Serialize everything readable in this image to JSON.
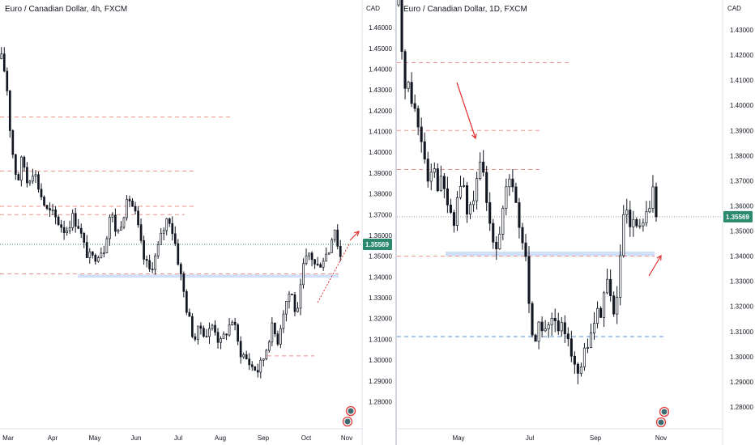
{
  "left": {
    "title": "Euro / Canadian Dollar, 4h, FXCM",
    "currency": "CAD",
    "price_label": "1.35569",
    "chart_data": {
      "type": "candlestick",
      "title": "Euro / Canadian Dollar, 4h, FXCM",
      "y_ticks": [
        "1.28000",
        "1.29000",
        "1.30000",
        "1.31000",
        "1.32000",
        "1.33000",
        "1.34000",
        "1.35000",
        "1.36000",
        "1.37000",
        "1.38000",
        "1.39000",
        "1.40000",
        "1.41000",
        "1.42000",
        "1.43000",
        "1.44000",
        "1.45000",
        "1.46000"
      ],
      "ylim": [
        1.2755,
        1.4655
      ],
      "x_ticks": [
        "Mar",
        "Apr",
        "May",
        "Jun",
        "Jul",
        "Aug",
        "Sep",
        "Oct",
        "Nov"
      ],
      "current_price": 1.35569,
      "price_path": [
        [
          0,
          1.445
        ],
        [
          6,
          1.436
        ],
        [
          12,
          1.405
        ],
        [
          20,
          1.385
        ],
        [
          26,
          1.398
        ],
        [
          32,
          1.386
        ],
        [
          40,
          1.392
        ],
        [
          48,
          1.381
        ],
        [
          56,
          1.372
        ],
        [
          64,
          1.37
        ],
        [
          72,
          1.366
        ],
        [
          80,
          1.362
        ],
        [
          88,
          1.369
        ],
        [
          96,
          1.365
        ],
        [
          104,
          1.353
        ],
        [
          112,
          1.348
        ],
        [
          120,
          1.352
        ],
        [
          128,
          1.354
        ],
        [
          136,
          1.372
        ],
        [
          144,
          1.36
        ],
        [
          152,
          1.371
        ],
        [
          160,
          1.378
        ],
        [
          168,
          1.368
        ],
        [
          176,
          1.35
        ],
        [
          184,
          1.343
        ],
        [
          192,
          1.35
        ],
        [
          200,
          1.361
        ],
        [
          208,
          1.37
        ],
        [
          216,
          1.357
        ],
        [
          224,
          1.339
        ],
        [
          232,
          1.322
        ],
        [
          240,
          1.31
        ],
        [
          248,
          1.316
        ],
        [
          256,
          1.312
        ],
        [
          264,
          1.318
        ],
        [
          272,
          1.307
        ],
        [
          280,
          1.314
        ],
        [
          288,
          1.32
        ],
        [
          296,
          1.305
        ],
        [
          304,
          1.301
        ],
        [
          312,
          1.297
        ],
        [
          320,
          1.295
        ],
        [
          328,
          1.303
        ],
        [
          336,
          1.316
        ],
        [
          344,
          1.31
        ],
        [
          352,
          1.326
        ],
        [
          360,
          1.334
        ],
        [
          368,
          1.32
        ],
        [
          376,
          1.345
        ],
        [
          384,
          1.352
        ],
        [
          392,
          1.344
        ],
        [
          400,
          1.349
        ],
        [
          408,
          1.353
        ],
        [
          414,
          1.366
        ],
        [
          418,
          1.357
        ],
        [
          422,
          1.35
        ]
      ],
      "resistance_lines": [
        1.417,
        1.391,
        1.374,
        1.37,
        1.3415,
        1.302
      ],
      "support_zone": [
        1.34,
        1.3412
      ],
      "ma_level": 1.3557
    }
  },
  "right": {
    "title": "Euro / Canadian Dollar, 1D, FXCM",
    "currency": "CAD",
    "price_label": "1.35569",
    "chart_data": {
      "type": "candlestick",
      "title": "Euro / Canadian Dollar, 1D, FXCM",
      "y_ticks": [
        "1.28000",
        "1.29000",
        "1.30000",
        "1.31000",
        "1.32000",
        "1.33000",
        "1.34000",
        "1.35000",
        "1.36000",
        "1.37000",
        "1.38000",
        "1.39000",
        "1.40000",
        "1.41000",
        "1.42000",
        "1.43000"
      ],
      "ylim": [
        1.2745,
        1.4355
      ],
      "x_ticks": [
        "May",
        "Jul",
        "Sep",
        "Nov"
      ],
      "current_price": 1.35569,
      "price_path": [
        [
          0,
          1.44
        ],
        [
          6,
          1.412
        ],
        [
          12,
          1.407
        ],
        [
          18,
          1.402
        ],
        [
          24,
          1.392
        ],
        [
          30,
          1.386
        ],
        [
          36,
          1.372
        ],
        [
          42,
          1.378
        ],
        [
          48,
          1.37
        ],
        [
          56,
          1.368
        ],
        [
          62,
          1.36
        ],
        [
          68,
          1.349
        ],
        [
          74,
          1.365
        ],
        [
          80,
          1.371
        ],
        [
          86,
          1.355
        ],
        [
          92,
          1.362
        ],
        [
          98,
          1.368
        ],
        [
          104,
          1.378
        ],
        [
          110,
          1.36
        ],
        [
          116,
          1.352
        ],
        [
          122,
          1.345
        ],
        [
          128,
          1.353
        ],
        [
          134,
          1.366
        ],
        [
          140,
          1.368
        ],
        [
          146,
          1.364
        ],
        [
          152,
          1.348
        ],
        [
          158,
          1.343
        ],
        [
          164,
          1.318
        ],
        [
          170,
          1.304
        ],
        [
          176,
          1.313
        ],
        [
          182,
          1.312
        ],
        [
          188,
          1.31
        ],
        [
          194,
          1.316
        ],
        [
          200,
          1.307
        ],
        [
          206,
          1.312
        ],
        [
          212,
          1.31
        ],
        [
          218,
          1.3
        ],
        [
          224,
          1.29
        ],
        [
          230,
          1.298
        ],
        [
          236,
          1.304
        ],
        [
          242,
          1.312
        ],
        [
          248,
          1.316
        ],
        [
          254,
          1.32
        ],
        [
          260,
          1.332
        ],
        [
          266,
          1.321
        ],
        [
          272,
          1.317
        ],
        [
          278,
          1.344
        ],
        [
          284,
          1.36
        ],
        [
          290,
          1.348
        ],
        [
          296,
          1.353
        ],
        [
          302,
          1.349
        ],
        [
          308,
          1.357
        ],
        [
          314,
          1.356
        ],
        [
          318,
          1.367
        ],
        [
          322,
          1.358
        ]
      ],
      "resistance_lines": [
        1.417,
        1.39,
        1.3745,
        1.34
      ],
      "support_line": 1.308,
      "support_zone": [
        1.34,
        1.3418
      ],
      "ma_level": 1.3557
    }
  },
  "colors": {
    "candle": "#131722",
    "resistance": "#f1928e",
    "support": "#5b8fd6",
    "zone": "#c9daf5",
    "annotation": "#e12f2f",
    "price_badge": "#2b8a6e",
    "axis_text": "#131722",
    "bg": "#ffffff"
  }
}
